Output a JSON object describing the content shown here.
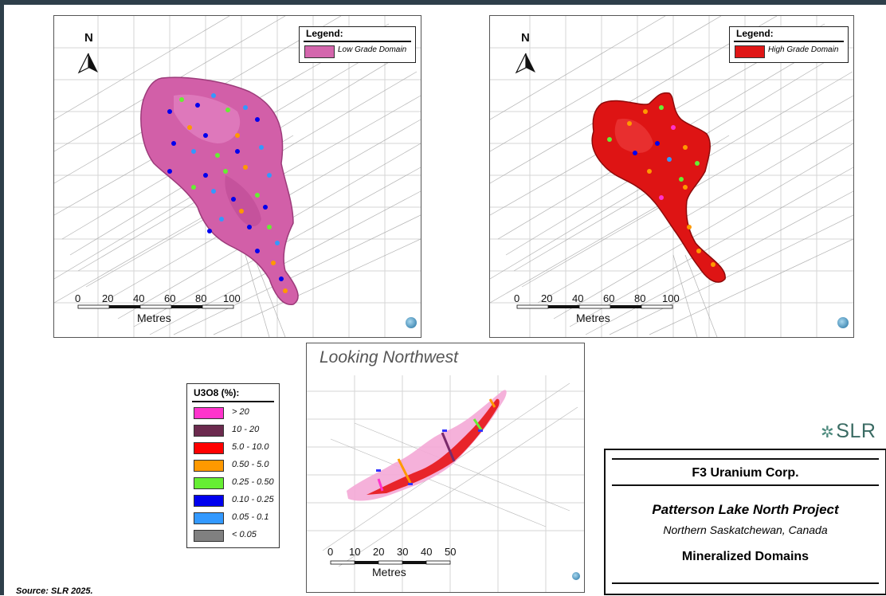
{
  "panels": {
    "low_grade": {
      "north_label": "N",
      "legend": {
        "title": "Legend:",
        "label": "Low Grade Domain",
        "color": "#d466ad"
      },
      "scale": {
        "ticks": [
          "0",
          "20",
          "40",
          "60",
          "80",
          "100"
        ],
        "unit": "Metres"
      }
    },
    "high_grade": {
      "north_label": "N",
      "legend": {
        "title": "Legend:",
        "label": "High Grade Domain",
        "color": "#e01616"
      },
      "scale": {
        "ticks": [
          "0",
          "20",
          "40",
          "60",
          "80",
          "100"
        ],
        "unit": "Metres"
      }
    },
    "section": {
      "view_title": "Looking Northwest",
      "scale": {
        "ticks": [
          "0",
          "10",
          "20",
          "30",
          "40",
          "50"
        ],
        "unit": "Metres"
      }
    }
  },
  "u3o8_legend": {
    "title": "U3O8 (%):",
    "items": [
      {
        "label": "> 20",
        "color": "#ff33cc"
      },
      {
        "label": "10 - 20",
        "color": "#6b2a4e"
      },
      {
        "label": "5.0 - 10.0",
        "color": "#ff0000"
      },
      {
        "label": "0.50 - 5.0",
        "color": "#ff9900"
      },
      {
        "label": "0.25 - 0.50",
        "color": "#66ee33"
      },
      {
        "label": "0.10 - 0.25",
        "color": "#0000ee"
      },
      {
        "label": "0.05 - 0.1",
        "color": "#3399ff"
      },
      {
        "label": "< 0.05",
        "color": "#808080"
      }
    ]
  },
  "logo": "SLR",
  "title_block": {
    "company": "F3 Uranium Corp.",
    "project": "Patterson Lake North Project",
    "location": "Northern Saskatchewan, Canada",
    "figure_title": "Mineralized Domains"
  },
  "source": "Source:  SLR 2025."
}
